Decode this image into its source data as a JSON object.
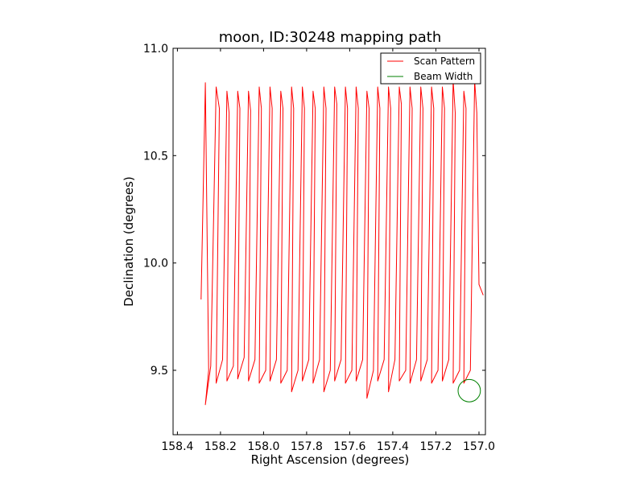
{
  "chart_data": {
    "type": "line",
    "title": "moon, ID:30248 mapping path",
    "xlabel": "Right Ascension (degrees)",
    "ylabel": "Declination (degrees)",
    "xlim": [
      158.42,
      156.97
    ],
    "ylim": [
      9.2,
      11.0
    ],
    "x_inverted": true,
    "xticks": [
      158.4,
      158.2,
      158.0,
      157.8,
      157.6,
      157.4,
      157.2,
      157.0
    ],
    "xtick_labels": [
      "158.4",
      "158.2",
      "158.0",
      "157.8",
      "157.6",
      "157.4",
      "157.2",
      "157.0"
    ],
    "yticks": [
      9.5,
      10.0,
      10.5,
      11.0
    ],
    "ytick_labels": [
      "9.5",
      "10.0",
      "10.5",
      "11.0"
    ],
    "grid": false,
    "legend_position": "top-right",
    "series": [
      {
        "name": "Scan Pattern",
        "color": "#ff0000",
        "x": [
          158.29,
          158.27,
          158.255,
          158.27,
          158.245,
          158.22,
          158.205,
          158.22,
          158.19,
          158.17,
          158.16,
          158.17,
          158.14,
          158.12,
          158.11,
          158.12,
          158.09,
          158.07,
          158.06,
          158.07,
          158.04,
          158.02,
          158.01,
          158.02,
          157.99,
          157.97,
          157.96,
          157.97,
          157.94,
          157.92,
          157.91,
          157.92,
          157.89,
          157.87,
          157.86,
          157.87,
          157.84,
          157.82,
          157.81,
          157.82,
          157.79,
          157.77,
          157.76,
          157.77,
          157.74,
          157.72,
          157.71,
          157.72,
          157.69,
          157.67,
          157.66,
          157.67,
          157.64,
          157.62,
          157.61,
          157.62,
          157.59,
          157.57,
          157.56,
          157.57,
          157.54,
          157.52,
          157.51,
          157.52,
          157.49,
          157.47,
          157.46,
          157.47,
          157.44,
          157.42,
          157.41,
          157.42,
          157.39,
          157.37,
          157.36,
          157.37,
          157.34,
          157.32,
          157.31,
          157.32,
          157.29,
          157.27,
          157.26,
          157.27,
          157.24,
          157.22,
          157.21,
          157.22,
          157.19,
          157.17,
          157.16,
          157.17,
          157.14,
          157.12,
          157.11,
          157.12,
          157.09,
          157.07,
          157.06,
          157.07,
          157.04,
          157.02,
          157.01,
          157.0,
          156.98
        ],
        "y": [
          9.83,
          10.84,
          9.5,
          9.34,
          9.52,
          10.82,
          10.72,
          9.44,
          9.55,
          10.8,
          10.7,
          9.45,
          9.52,
          10.8,
          10.72,
          9.46,
          9.56,
          10.8,
          10.71,
          9.45,
          9.55,
          10.82,
          10.72,
          9.44,
          9.5,
          10.82,
          10.72,
          9.45,
          9.55,
          10.8,
          10.72,
          9.44,
          9.5,
          10.82,
          10.72,
          9.4,
          9.5,
          10.82,
          10.72,
          9.45,
          9.55,
          10.8,
          10.72,
          9.44,
          9.55,
          10.82,
          10.72,
          9.4,
          9.5,
          10.82,
          10.74,
          9.45,
          9.55,
          10.82,
          10.72,
          9.44,
          9.5,
          10.82,
          10.72,
          9.45,
          9.55,
          10.8,
          10.72,
          9.37,
          9.5,
          10.82,
          10.72,
          9.45,
          9.55,
          10.82,
          10.72,
          9.4,
          9.55,
          10.82,
          10.74,
          9.45,
          9.5,
          10.82,
          10.72,
          9.44,
          9.55,
          10.82,
          10.72,
          9.45,
          9.55,
          10.82,
          10.72,
          9.44,
          9.5,
          10.82,
          10.72,
          9.45,
          9.55,
          10.85,
          10.7,
          9.44,
          9.5,
          10.8,
          10.72,
          9.44,
          9.5,
          10.85,
          10.7,
          9.9,
          9.85
        ]
      },
      {
        "name": "Beam Width",
        "color": "#008000",
        "type": "circle",
        "center": [
          157.045,
          9.405
        ],
        "radius_deg": 0.052
      }
    ]
  }
}
